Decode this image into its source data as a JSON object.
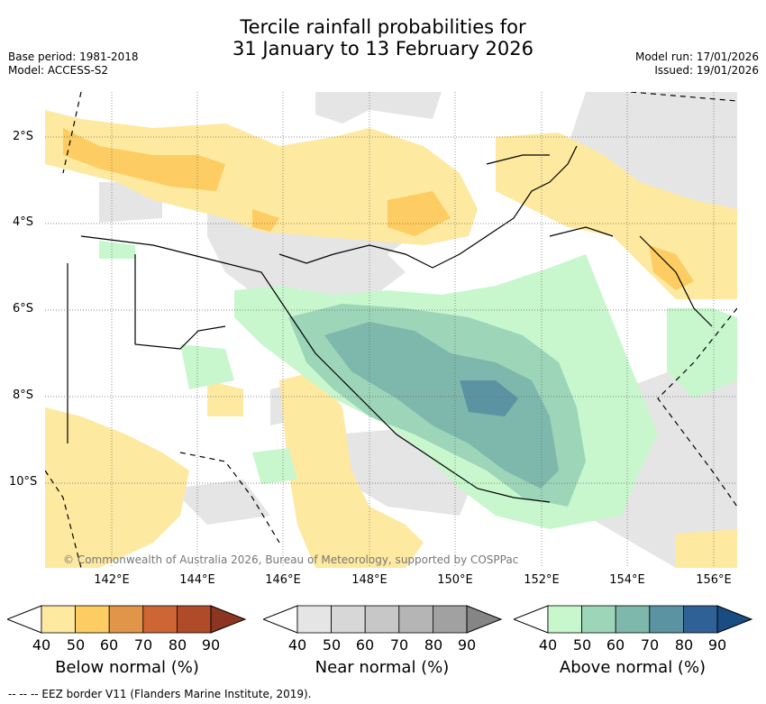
{
  "title_line1": "Tercile rainfall probabilities for",
  "title_line2": "31 January to 13 February 2026",
  "base_period": "Base period: 1981-2018",
  "model": "Model: ACCESS-S2",
  "model_run": "Model run: 17/01/2026",
  "issued": "Issued: 19/01/2026",
  "lat_labels": [
    "2°S",
    "4°S",
    "6°S",
    "8°S",
    "10°S"
  ],
  "lon_labels": [
    "142°E",
    "144°E",
    "146°E",
    "148°E",
    "150°E",
    "152°E",
    "154°E",
    "156°E"
  ],
  "credit": "© Commonwealth of Australia 2026, Bureau of Meteorology, supported by COSPPac",
  "colorbars": [
    {
      "label": "Below normal (%)",
      "ticks": [
        "40",
        "50",
        "60",
        "70",
        "80",
        "90"
      ],
      "colors": [
        "#fee9a0",
        "#fdcc62",
        "#e09548",
        "#cd6534",
        "#b04b2a",
        "#8c3522"
      ]
    },
    {
      "label": "Near normal (%)",
      "ticks": [
        "40",
        "50",
        "60",
        "70",
        "80",
        "90"
      ],
      "colors": [
        "#e5e5e5",
        "#d7d7d7",
        "#c7c7c7",
        "#b5b5b5",
        "#a1a1a1",
        "#858585"
      ]
    },
    {
      "label": "Above normal (%)",
      "ticks": [
        "40",
        "50",
        "60",
        "70",
        "80",
        "90"
      ],
      "colors": [
        "#c8f7cd",
        "#9cd5b8",
        "#7eb7ab",
        "#5b93a3",
        "#2f6196",
        "#184c83"
      ]
    }
  ],
  "footnote": "-- -- -- EEZ border V11 (Flanders Marine Institute, 2019)."
}
